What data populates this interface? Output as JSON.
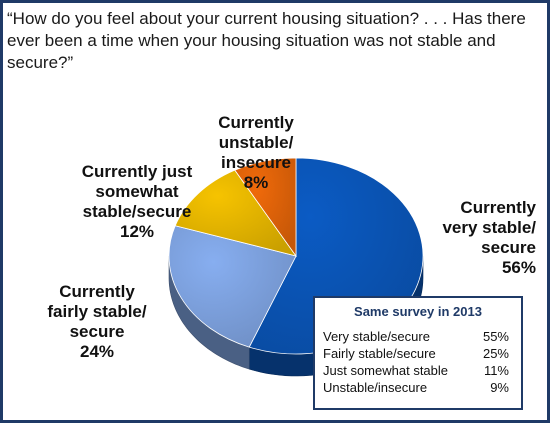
{
  "question": "“How do you feel about your current housing situation? . . . Has there ever been a time when your housing situation was not stable and secure?”",
  "chart_data": {
    "type": "pie",
    "title": "",
    "slices": [
      {
        "label": "Currently\nvery stable/\nsecure",
        "value": 56,
        "display": "56%",
        "color": "#0b5bc4"
      },
      {
        "label": "Currently\nfairly stable/\nsecure",
        "value": 24,
        "display": "24%",
        "color": "#87aef0"
      },
      {
        "label": "Currently just\nsomewhat\nstable/secure",
        "value": 12,
        "display": "12%",
        "color": "#f6c300"
      },
      {
        "label": "Currently\nunstable/\ninsecure",
        "value": 8,
        "display": "8%",
        "color": "#f06a0a"
      }
    ],
    "start_angle": "12 o'clock",
    "direction": "clockwise",
    "style": "3D tilted pie"
  },
  "survey_2013": {
    "title": "Same survey in 2013",
    "rows": [
      {
        "label": "Very stable/secure",
        "value": "55%"
      },
      {
        "label": "Fairly stable/secure",
        "value": "25%"
      },
      {
        "label": "Just somewhat stable",
        "value": "11%"
      },
      {
        "label": "Unstable/insecure",
        "value": "9%"
      }
    ]
  }
}
